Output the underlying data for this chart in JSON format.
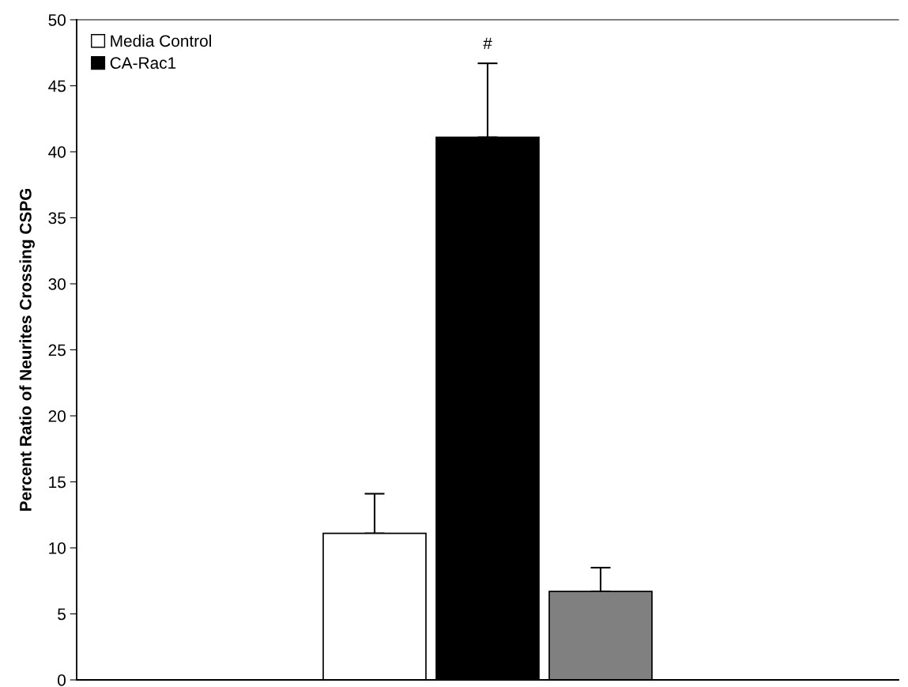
{
  "chart_data": {
    "type": "bar",
    "ylabel": "Percent Ratio of Neurites Crossing CSPG",
    "categories": [
      null
    ],
    "series": [
      {
        "name": "Media Control",
        "color": "#ffffff",
        "values": [
          11.1
        ],
        "errors": [
          [
            11.1,
            14.1
          ]
        ]
      },
      {
        "name": "CA-Rac1",
        "color": "#000000",
        "values": [
          41.1
        ],
        "errors": [
          [
            41.1,
            46.7
          ]
        ]
      },
      {
        "color": "#808080",
        "values": [
          6.7
        ],
        "errors": [
          [
            6.7,
            8.5
          ]
        ]
      }
    ],
    "annotations": [
      "#"
    ],
    "ylim": [
      0,
      50
    ],
    "yticks": [
      0,
      5,
      10,
      15,
      20,
      25,
      30,
      35,
      40,
      45,
      50
    ],
    "grid": false,
    "legend": "top left"
  }
}
